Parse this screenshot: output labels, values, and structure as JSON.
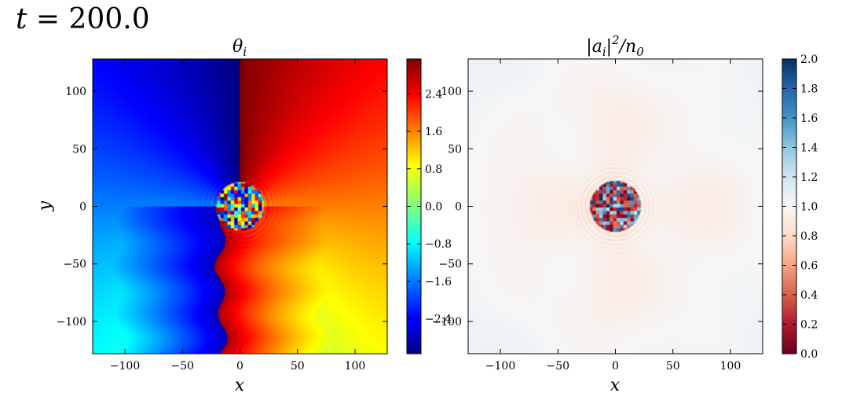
{
  "figure": {
    "title_var": "t",
    "title_eq": " = ",
    "title_value": "200.0"
  },
  "chart_data": [
    {
      "type": "heatmap",
      "title": "θ_i",
      "title_base": "θ",
      "title_sub": "i",
      "xlabel": "x",
      "ylabel": "y",
      "xlim": [
        -128,
        128
      ],
      "ylim": [
        -128,
        128
      ],
      "xticks": [
        -100,
        -50,
        0,
        50,
        100
      ],
      "yticks": [
        -100,
        -50,
        0,
        50,
        100
      ],
      "xtick_labels": [
        "−100",
        "−50",
        "0",
        "50",
        "100"
      ],
      "ytick_labels": [
        "−100",
        "−50",
        "0",
        "50",
        "100"
      ],
      "colormap": "jet",
      "colorbar_range": [
        -3.14159,
        3.14159
      ],
      "colorbar_ticks": [
        -2.4,
        -1.6,
        -0.8,
        0.0,
        0.8,
        1.6,
        2.4
      ],
      "colorbar_tick_labels": [
        "−2.4",
        "−1.6",
        "−0.8",
        "0.0",
        "0.8",
        "1.6",
        "2.4"
      ],
      "description_values": {
        "core_center": [
          0,
          0
        ],
        "core_radius": 21,
        "branch_cut_x_approx": -15
      },
      "grid": false
    },
    {
      "type": "heatmap",
      "title": "|a_i|²/n_0",
      "xlabel": "x",
      "ylabel": "",
      "xlim": [
        -128,
        128
      ],
      "ylim": [
        -128,
        128
      ],
      "xticks": [
        -100,
        -50,
        0,
        50,
        100
      ],
      "yticks": [
        -100,
        -50,
        0,
        50,
        100
      ],
      "xtick_labels": [
        "−100",
        "−50",
        "0",
        "50",
        "100"
      ],
      "ytick_labels": [
        "−100",
        "−50",
        "0",
        "50",
        "100"
      ],
      "colormap": "RdBu",
      "colorbar_range": [
        0.0,
        2.0
      ],
      "colorbar_ticks": [
        0.0,
        0.2,
        0.4,
        0.6,
        0.8,
        1.0,
        1.2,
        1.4,
        1.6,
        1.8,
        2.0
      ],
      "colorbar_tick_labels": [
        "0.0",
        "0.2",
        "0.4",
        "0.6",
        "0.8",
        "1.0",
        "1.2",
        "1.4",
        "1.6",
        "1.8",
        "2.0"
      ],
      "description_values": {
        "core_center": [
          0,
          0
        ],
        "core_radius": 22,
        "background_level": 1.0
      },
      "grid": false
    }
  ]
}
